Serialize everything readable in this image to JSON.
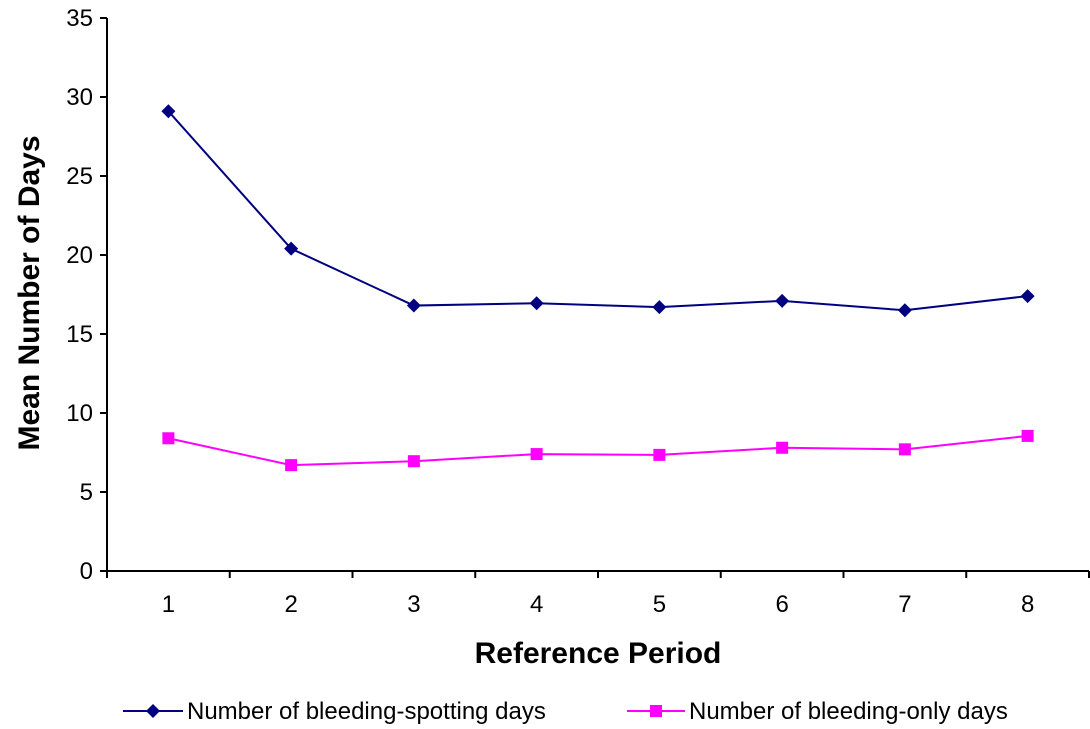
{
  "chart_data": {
    "type": "line",
    "title": "",
    "xlabel": "Reference Period",
    "ylabel": "Mean Number of Days",
    "x": [
      1,
      2,
      3,
      4,
      5,
      6,
      7,
      8
    ],
    "ylim": [
      0,
      35
    ],
    "yticks": [
      0,
      5,
      10,
      15,
      20,
      25,
      30,
      35
    ],
    "grid": false,
    "legend_position": "bottom",
    "series": [
      {
        "name": "Number of bleeding-spotting days",
        "marker": "diamond",
        "color": "#000080",
        "values": [
          29.1,
          20.4,
          16.8,
          16.95,
          16.7,
          17.1,
          16.5,
          17.4
        ]
      },
      {
        "name": "Number of bleeding-only days",
        "marker": "square",
        "color": "#ff00ff",
        "values": [
          8.4,
          6.7,
          6.95,
          7.4,
          7.35,
          7.8,
          7.7,
          8.55
        ]
      }
    ]
  }
}
